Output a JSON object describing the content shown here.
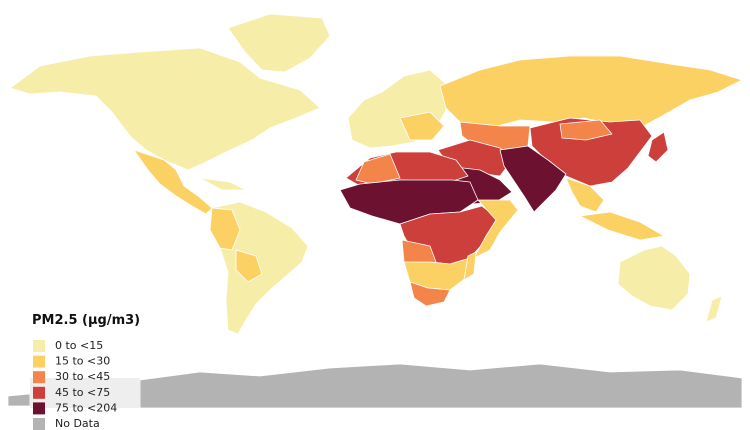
{
  "legend": {
    "title": "PM2.5 (μg/m3)",
    "items": [
      {
        "label": "0 to <15",
        "color": "#f6eea8"
      },
      {
        "label": "15 to <30",
        "color": "#fcd164"
      },
      {
        "label": "30 to <45",
        "color": "#f4854a"
      },
      {
        "label": "45 to <75",
        "color": "#cc3f3b"
      },
      {
        "label": "75 to <204",
        "color": "#6d1131"
      },
      {
        "label": "No Data",
        "color": "#b3b3b3"
      }
    ]
  }
}
